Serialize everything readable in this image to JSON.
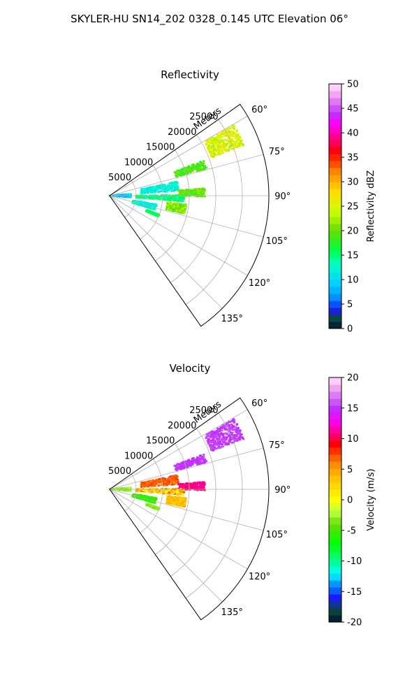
{
  "suptitle": "SKYLER-HU  SN14_202  0328_0.145 UTC Elevation 06°",
  "chart_data": [
    {
      "type": "polar-sector-heatmap",
      "title": "Reflectivity",
      "radial_label": "Meters",
      "radial_range": [
        0,
        30000
      ],
      "radial_ticks": [
        5000,
        10000,
        15000,
        20000,
        25000
      ],
      "angular_range_deg": [
        55,
        145
      ],
      "angular_ticks": [
        60,
        75,
        90,
        105,
        120,
        135
      ],
      "grid": true,
      "colorbar": {
        "label": "Reflectivity dBZ",
        "range": [
          0,
          50
        ],
        "ticks": [
          0,
          5,
          10,
          15,
          20,
          25,
          30,
          35,
          40,
          45,
          50
        ],
        "stops": [
          {
            "v": 0,
            "c": "#001133"
          },
          {
            "v": 2,
            "c": "#0a4a3a"
          },
          {
            "v": 4,
            "c": "#1a1aff"
          },
          {
            "v": 6,
            "c": "#0088ff"
          },
          {
            "v": 9,
            "c": "#00ccff"
          },
          {
            "v": 13,
            "c": "#00ffcc"
          },
          {
            "v": 16,
            "c": "#00ff44"
          },
          {
            "v": 20,
            "c": "#66dd00"
          },
          {
            "v": 24,
            "c": "#ccff00"
          },
          {
            "v": 28,
            "c": "#ffdd00"
          },
          {
            "v": 32,
            "c": "#ff8800"
          },
          {
            "v": 36,
            "c": "#ff0000"
          },
          {
            "v": 39,
            "c": "#ff0088"
          },
          {
            "v": 42,
            "c": "#ff00ff"
          },
          {
            "v": 44,
            "c": "#bb33ff"
          },
          {
            "v": 47,
            "c": "#ee88ee"
          },
          {
            "v": 50,
            "c": "#ffe6ff"
          }
        ]
      },
      "echoes": [
        {
          "az": 65,
          "r0": 20500,
          "r1": 27000,
          "spread": 4.5,
          "v0": 22,
          "v1": 28,
          "density": 0.8
        },
        {
          "az": 72,
          "r0": 13000,
          "r1": 19000,
          "spread": 2.5,
          "v0": 17,
          "v1": 21,
          "density": 0.4
        },
        {
          "az": 82,
          "r0": 6000,
          "r1": 13000,
          "spread": 4.0,
          "v0": 10,
          "v1": 14,
          "density": 0.6
        },
        {
          "az": 88,
          "r0": 13000,
          "r1": 18000,
          "spread": 2.5,
          "v0": 18,
          "v1": 22,
          "density": 0.5
        },
        {
          "az": 92,
          "r0": 5000,
          "r1": 14000,
          "spread": 2.5,
          "v0": 11,
          "v1": 19,
          "density": 0.7
        },
        {
          "az": 100,
          "r0": 11000,
          "r1": 14500,
          "spread": 3.5,
          "v0": 18,
          "v1": 24,
          "density": 0.75
        },
        {
          "az": 104,
          "r0": 4500,
          "r1": 9000,
          "spread": 3.5,
          "v0": 10,
          "v1": 14,
          "density": 0.6
        },
        {
          "az": 90,
          "r0": 0,
          "r1": 4000,
          "spread": 5.0,
          "v0": 6,
          "v1": 12,
          "density": 0.5
        },
        {
          "az": 112,
          "r0": 7500,
          "r1": 10000,
          "spread": 1.2,
          "v0": 15,
          "v1": 17,
          "density": 0.4
        }
      ]
    },
    {
      "type": "polar-sector-heatmap",
      "title": "Velocity",
      "radial_label": "Meters",
      "radial_range": [
        0,
        30000
      ],
      "radial_ticks": [
        5000,
        10000,
        15000,
        20000,
        25000
      ],
      "angular_range_deg": [
        55,
        145
      ],
      "angular_ticks": [
        60,
        75,
        90,
        105,
        120,
        135
      ],
      "grid": true,
      "colorbar": {
        "label": "Velocity (m/s)",
        "range": [
          -20,
          20
        ],
        "ticks": [
          -20,
          -15,
          -10,
          -5,
          0,
          5,
          10,
          15,
          20
        ],
        "stops": [
          {
            "v": -20,
            "c": "#001133"
          },
          {
            "v": -18,
            "c": "#0a4a3a"
          },
          {
            "v": -16,
            "c": "#1a1aff"
          },
          {
            "v": -14,
            "c": "#0088ff"
          },
          {
            "v": -12,
            "c": "#00ffff"
          },
          {
            "v": -10,
            "c": "#00ff88"
          },
          {
            "v": -7,
            "c": "#00ff00"
          },
          {
            "v": -4,
            "c": "#66dd00"
          },
          {
            "v": -2,
            "c": "#bbff44"
          },
          {
            "v": 0,
            "c": "#ffff00"
          },
          {
            "v": 3,
            "c": "#ffcc00"
          },
          {
            "v": 6,
            "c": "#ff8800"
          },
          {
            "v": 9,
            "c": "#ff0000"
          },
          {
            "v": 11,
            "c": "#ff0088"
          },
          {
            "v": 13,
            "c": "#ff00ff"
          },
          {
            "v": 15,
            "c": "#bb33ff"
          },
          {
            "v": 18,
            "c": "#ee99ee"
          },
          {
            "v": 20,
            "c": "#ffe6ff"
          }
        ]
      },
      "echoes": [
        {
          "az": 65,
          "r0": 20500,
          "r1": 27000,
          "spread": 4.5,
          "v0": 14.5,
          "v1": 16,
          "density": 0.8
        },
        {
          "az": 72,
          "r0": 13000,
          "r1": 19000,
          "spread": 2.5,
          "v0": 14.5,
          "v1": 15.5,
          "density": 0.4
        },
        {
          "az": 82,
          "r0": 6000,
          "r1": 13000,
          "spread": 4.0,
          "v0": 6,
          "v1": 8,
          "density": 0.6
        },
        {
          "az": 88,
          "r0": 13000,
          "r1": 18000,
          "spread": 2.5,
          "v0": 10,
          "v1": 12,
          "density": 0.5
        },
        {
          "az": 92,
          "r0": 5000,
          "r1": 14000,
          "spread": 2.5,
          "v0": -2,
          "v1": 8,
          "density": 0.7
        },
        {
          "az": 100,
          "r0": 11000,
          "r1": 14500,
          "spread": 3.5,
          "v0": 2,
          "v1": 5,
          "density": 0.75
        },
        {
          "az": 104,
          "r0": 4500,
          "r1": 9000,
          "spread": 3.5,
          "v0": -7,
          "v1": -4,
          "density": 0.6
        },
        {
          "az": 90,
          "r0": 0,
          "r1": 4000,
          "spread": 5.0,
          "v0": -4,
          "v1": -2,
          "density": 0.5
        },
        {
          "az": 112,
          "r0": 7500,
          "r1": 10000,
          "spread": 1.2,
          "v0": -4,
          "v1": -2,
          "density": 0.4
        }
      ]
    }
  ]
}
